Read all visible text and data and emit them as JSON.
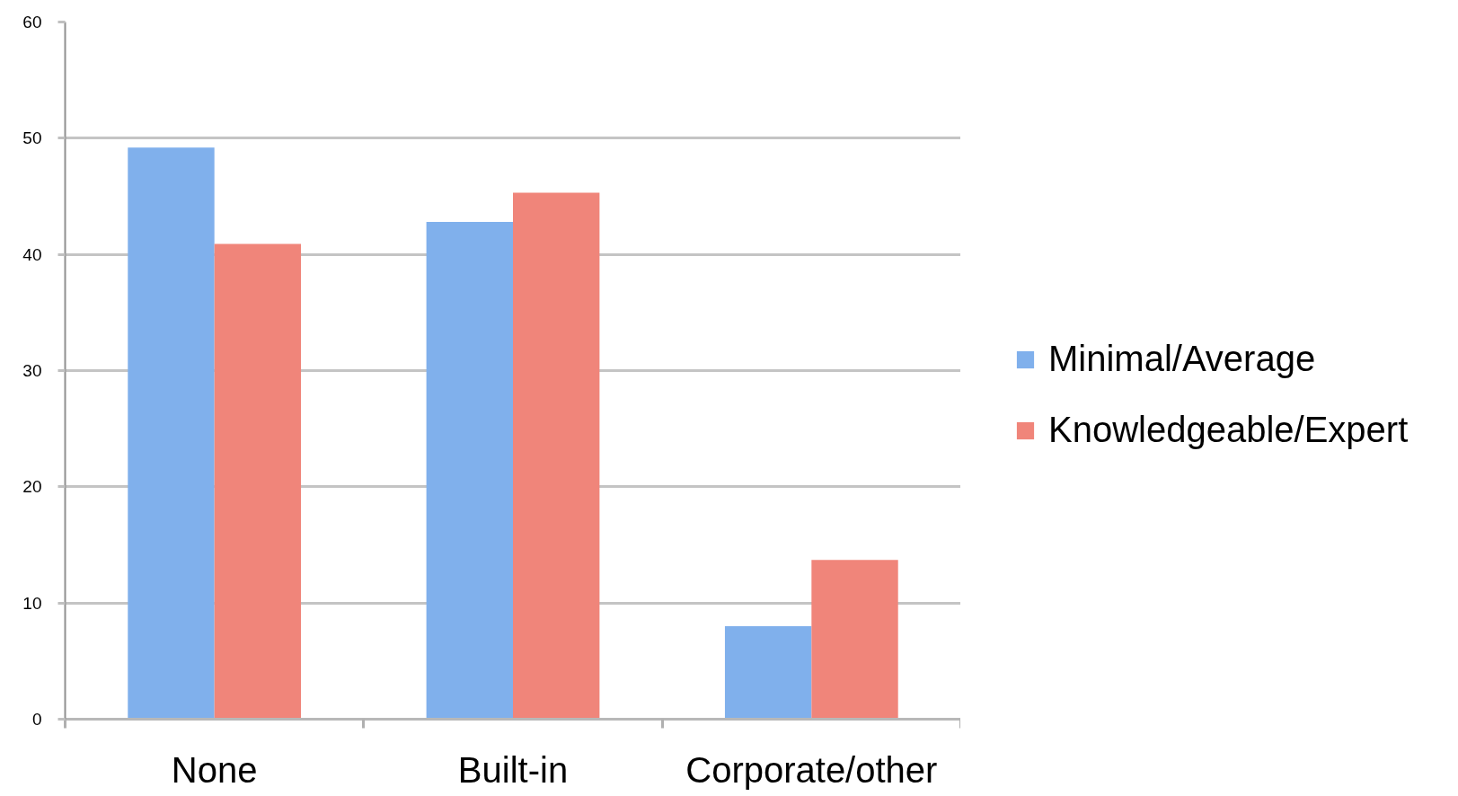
{
  "chart_data": {
    "type": "bar",
    "categories": [
      "None",
      "Built-in",
      "Corporate/other"
    ],
    "series": [
      {
        "name": "Minimal/Average",
        "color": "#80b0ec",
        "values": [
          49.2,
          42.8,
          8.0
        ]
      },
      {
        "name": "Knowledgeable/Expert",
        "color": "#f0857a",
        "values": [
          40.9,
          45.3,
          13.7
        ]
      }
    ],
    "ylim": [
      0,
      60
    ],
    "yticks": [
      0,
      10,
      20,
      30,
      40,
      50,
      60
    ],
    "grid": "y",
    "legend": "right"
  }
}
